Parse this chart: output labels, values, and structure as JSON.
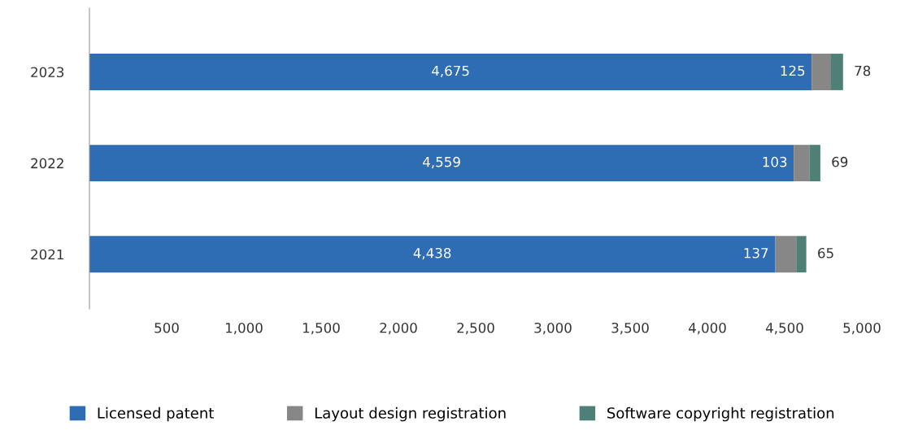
{
  "chart_data": {
    "type": "bar",
    "orientation": "horizontal",
    "stacked": true,
    "categories": [
      "2023",
      "2022",
      "2021"
    ],
    "series": [
      {
        "name": "Licensed patent",
        "color": "#2e6db4",
        "values": [
          4675,
          4559,
          4438
        ],
        "value_labels": [
          "4,675",
          "4,559",
          "4,438"
        ]
      },
      {
        "name": "Layout design registration",
        "color": "#878787",
        "values": [
          125,
          103,
          137
        ],
        "value_labels": [
          "125",
          "103",
          "137"
        ]
      },
      {
        "name": "Software copyright registration",
        "color": "#4e8077",
        "values": [
          78,
          69,
          65
        ],
        "value_labels": [
          "78",
          "69",
          "65"
        ]
      }
    ],
    "xlim": [
      0,
      5000
    ],
    "xticks": [
      500,
      {
        "value": 1000,
        "label": "1,000"
      },
      {
        "value": 1500,
        "label": "1,500"
      },
      {
        "value": 2000,
        "label": "2,000"
      },
      {
        "value": 2500,
        "label": "2,500"
      },
      {
        "value": 3000,
        "label": "3,000"
      },
      {
        "value": 3500,
        "label": "3,500"
      },
      {
        "value": 4000,
        "label": "4,000"
      },
      {
        "value": 4500,
        "label": "4,500"
      },
      {
        "value": 5000,
        "label": "5,000"
      }
    ],
    "grid": false,
    "legend": "bottom"
  }
}
